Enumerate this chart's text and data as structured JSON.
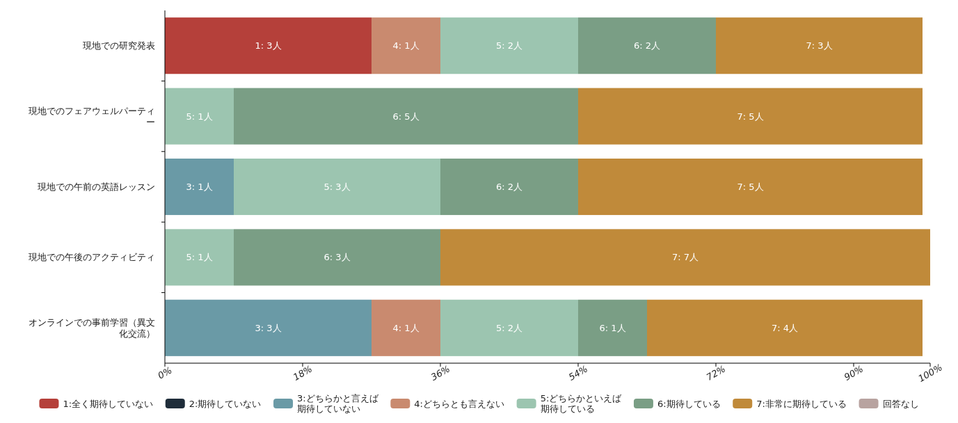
{
  "chart_data": {
    "type": "bar",
    "orientation": "horizontal",
    "stacked": true,
    "categories": [
      "現地での研究発表",
      "現地でのフェアウェルパーティー",
      "現地での午前の英語レッスン",
      "現地での午後のアクティビティ",
      "オンラインでの事前学習（異文化交流）"
    ],
    "series": [
      {
        "name": "1:全く期待していない",
        "color": "#b5403a",
        "values": [
          27,
          null,
          null,
          null,
          null
        ],
        "value_labels": [
          "1: 3人",
          null,
          null,
          null,
          null
        ]
      },
      {
        "name": "2:期待していない",
        "color": "#1f2d3a",
        "values": [
          null,
          null,
          null,
          null,
          null
        ]
      },
      {
        "name": "3:どちらかと言えば期待していない",
        "color": "#6a9aa6",
        "values": [
          null,
          null,
          9,
          null,
          27
        ],
        "value_labels": [
          null,
          null,
          "3: 1人",
          null,
          "3: 3人"
        ]
      },
      {
        "name": "4:どちらとも言えない",
        "color": "#c98a6f",
        "values": [
          9,
          null,
          null,
          null,
          9
        ],
        "value_labels": [
          "4: 1人",
          null,
          null,
          null,
          "4: 1人"
        ]
      },
      {
        "name": "5:どちらかといえば期待している",
        "color": "#9cc5b0",
        "values": [
          18,
          9,
          27,
          9,
          18
        ],
        "value_labels": [
          "5: 2人",
          "5: 1人",
          "5: 3人",
          "5: 1人",
          "5: 2人"
        ]
      },
      {
        "name": "6:期待している",
        "color": "#7a9e85",
        "values": [
          18,
          45,
          18,
          27,
          9
        ],
        "value_labels": [
          "6: 2人",
          "6: 5人",
          "6: 2人",
          "6: 3人",
          "6: 1人"
        ]
      },
      {
        "name": "7:非常に期待している",
        "color": "#c08a3a",
        "values": [
          27,
          45,
          45,
          64,
          36
        ],
        "value_labels": [
          "7: 3人",
          "7: 5人",
          "7: 5人",
          "7: 7人",
          "7: 4人"
        ]
      },
      {
        "name": "回答なし",
        "color": "#b8a3a0",
        "values": [
          null,
          null,
          null,
          null,
          null
        ]
      }
    ],
    "xlim": [
      0,
      100
    ],
    "xticks": [
      {
        "value": 0,
        "label": "0%"
      },
      {
        "value": 18,
        "label": "18%"
      },
      {
        "value": 36,
        "label": "36%"
      },
      {
        "value": 54,
        "label": "54%"
      },
      {
        "value": 72,
        "label": "72%"
      },
      {
        "value": 90,
        "label": "90%"
      },
      {
        "value": 100,
        "label": "100%"
      }
    ],
    "legend": "bottom"
  }
}
